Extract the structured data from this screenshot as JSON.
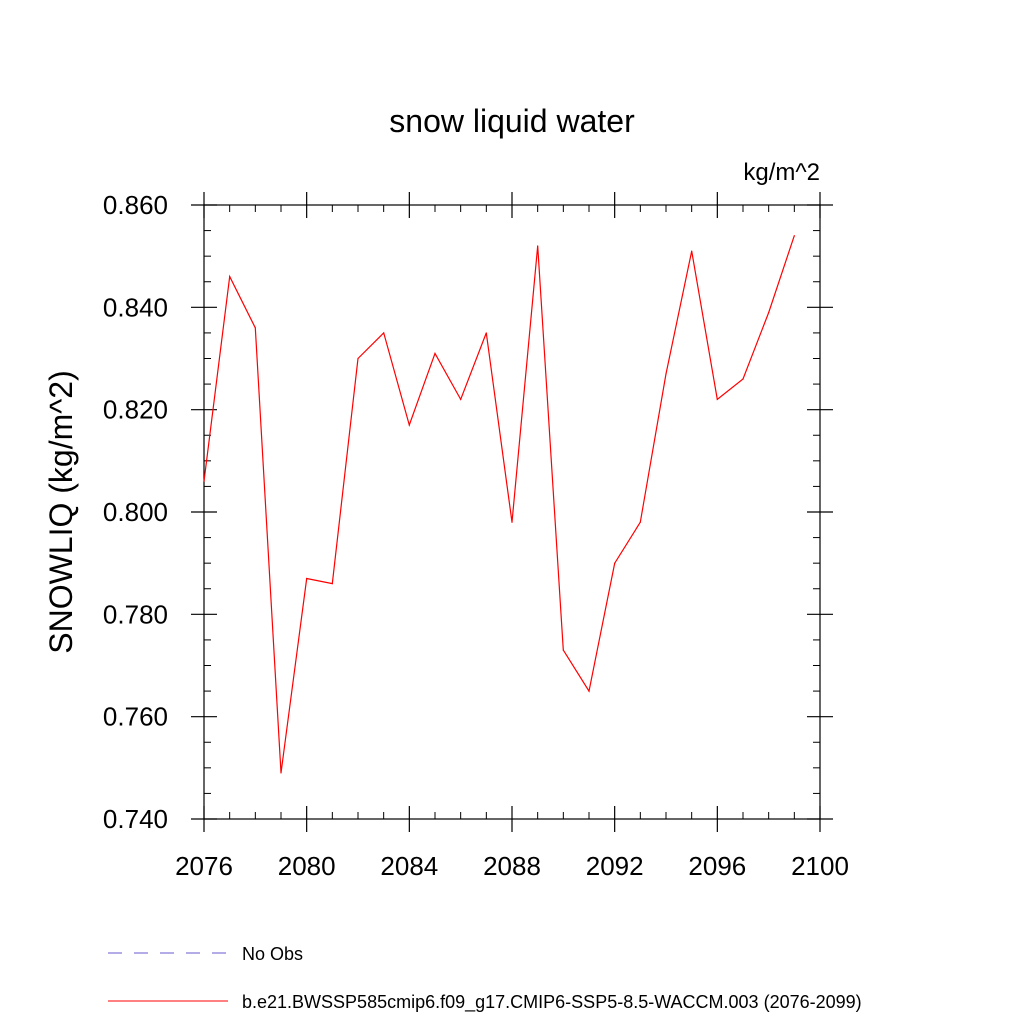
{
  "chart_data": {
    "type": "line",
    "title": "snow liquid water",
    "units_label": "kg/m^2",
    "ylabel": "SNOWLIQ  (kg/m^2)",
    "xlabel": "",
    "xlim": [
      2076,
      2100
    ],
    "ylim": [
      0.74,
      0.86
    ],
    "x_ticks": [
      2076,
      2080,
      2084,
      2088,
      2092,
      2096,
      2100
    ],
    "x_tick_labels": [
      "2076",
      "2080",
      "2084",
      "2088",
      "2092",
      "2096",
      "2100"
    ],
    "y_ticks": [
      0.74,
      0.76,
      0.78,
      0.8,
      0.82,
      0.84,
      0.86
    ],
    "y_tick_labels": [
      "0.740",
      "0.760",
      "0.780",
      "0.800",
      "0.820",
      "0.840",
      "0.860"
    ],
    "x_minor_step": 1,
    "y_minor_step": 0.005,
    "grid": false,
    "series": [
      {
        "name": "b.e21.BWSSP585cmip6.f09_g17.CMIP6-SSP5-8.5-WACCM.003 (2076-2099)",
        "color": "#ff0000",
        "style": "solid",
        "x": [
          2076,
          2077,
          2078,
          2079,
          2080,
          2081,
          2082,
          2083,
          2084,
          2085,
          2086,
          2087,
          2088,
          2089,
          2090,
          2091,
          2092,
          2093,
          2094,
          2095,
          2096,
          2097,
          2098,
          2099
        ],
        "values": [
          0.806,
          0.846,
          0.836,
          0.749,
          0.787,
          0.786,
          0.83,
          0.835,
          0.817,
          0.831,
          0.822,
          0.835,
          0.798,
          0.852,
          0.773,
          0.765,
          0.79,
          0.798,
          0.827,
          0.851,
          0.822,
          0.826,
          0.839,
          0.854
        ]
      }
    ],
    "legend": [
      {
        "label": "No Obs",
        "color": "#6a5acd",
        "style": "dashed"
      },
      {
        "label": "b.e21.BWSSP585cmip6.f09_g17.CMIP6-SSP5-8.5-WACCM.003 (2076-2099)",
        "color": "#ff0000",
        "style": "solid"
      }
    ],
    "legend_position": "bottom-left"
  }
}
